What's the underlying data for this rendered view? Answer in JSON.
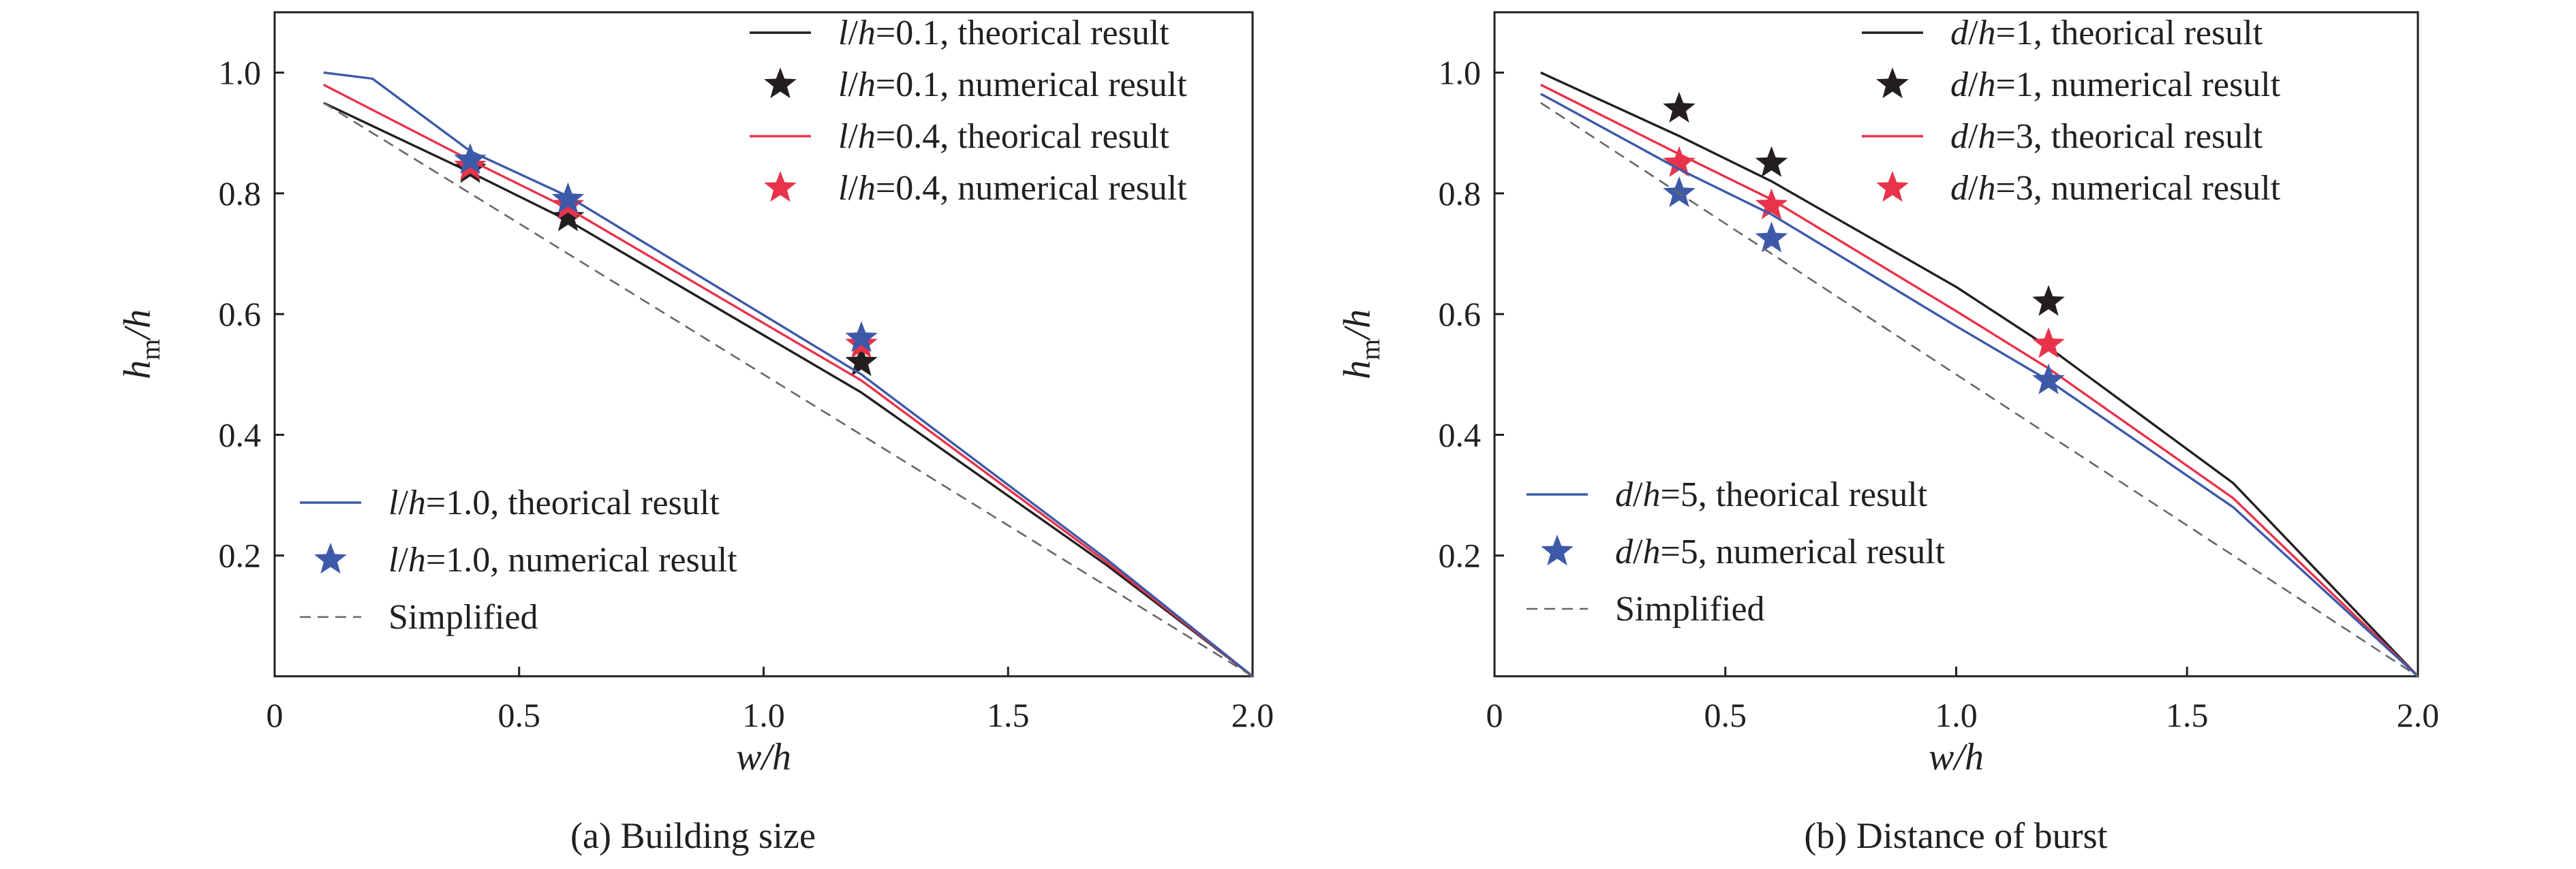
{
  "chart_data": [
    {
      "type": "line",
      "caption": "(a) Building size",
      "xlabel": "w/h",
      "ylabel": "hm/h",
      "xlim": [
        0,
        2.0
      ],
      "ylim": [
        0,
        1.1
      ],
      "x_ticks": [
        0,
        0.5,
        1.0,
        1.5,
        2.0
      ],
      "x_tick_labels": [
        "0",
        "0.5",
        "1.0",
        "1.5",
        "2.0"
      ],
      "y_ticks": [
        0.2,
        0.4,
        0.6,
        0.8,
        1.0
      ],
      "y_tick_labels": [
        "0.2",
        "0.4",
        "0.6",
        "0.8",
        "1.0"
      ],
      "legend_position": "top-right and lower-left",
      "series": [
        {
          "name": "l/h=0.1, theorical result",
          "kind": "line",
          "color": "#231f20",
          "x": [
            0.1,
            0.4,
            0.6,
            1.2,
            1.7,
            2.0
          ],
          "y": [
            0.95,
            0.835,
            0.755,
            0.47,
            0.185,
            0.0
          ]
        },
        {
          "name": "l/h=0.1, numerical result",
          "kind": "star",
          "color": "#231f20",
          "x": [
            0.4,
            0.6,
            1.2
          ],
          "y": [
            0.84,
            0.76,
            0.52
          ]
        },
        {
          "name": "l/h=0.4, theorical result",
          "kind": "line",
          "color": "#e8334a",
          "x": [
            0.1,
            0.4,
            0.6,
            1.2,
            1.7,
            2.0
          ],
          "y": [
            0.98,
            0.855,
            0.775,
            0.49,
            0.19,
            0.0
          ]
        },
        {
          "name": "l/h=0.4, numerical result",
          "kind": "star",
          "color": "#e8334a",
          "x": [
            0.4,
            0.6,
            1.2
          ],
          "y": [
            0.845,
            0.78,
            0.55
          ]
        },
        {
          "name": "l/h=1.0, theorical result",
          "kind": "line",
          "color": "#3d5aa8",
          "x": [
            0.1,
            0.2,
            0.4,
            0.6,
            1.2,
            1.7,
            2.0
          ],
          "y": [
            1.0,
            0.99,
            0.87,
            0.795,
            0.5,
            0.195,
            0.0
          ]
        },
        {
          "name": "l/h=1.0, numerical result",
          "kind": "star",
          "color": "#3d5aa8",
          "x": [
            0.4,
            0.6,
            1.2
          ],
          "y": [
            0.855,
            0.79,
            0.56
          ]
        },
        {
          "name": "Simplified",
          "kind": "dashed",
          "color": "#666666",
          "x": [
            0.1,
            2.0
          ],
          "y": [
            0.95,
            0.0
          ]
        }
      ]
    },
    {
      "type": "line",
      "caption": "(b) Distance of burst",
      "xlabel": "w/h",
      "ylabel": "hm/h",
      "xlim": [
        0,
        2.0
      ],
      "ylim": [
        0,
        1.1
      ],
      "x_ticks": [
        0,
        0.5,
        1.0,
        1.5,
        2.0
      ],
      "x_tick_labels": [
        "0",
        "0.5",
        "1.0",
        "1.5",
        "2.0"
      ],
      "y_ticks": [
        0.2,
        0.4,
        0.6,
        0.8,
        1.0
      ],
      "y_tick_labels": [
        "0.2",
        "0.4",
        "0.6",
        "0.8",
        "1.0"
      ],
      "legend_position": "top-right and lower-left",
      "series": [
        {
          "name": "d/h=1, theorical result",
          "kind": "line",
          "color": "#231f20",
          "x": [
            0.1,
            0.4,
            0.6,
            1.0,
            1.2,
            1.6,
            2.0
          ],
          "y": [
            1.0,
            0.895,
            0.82,
            0.645,
            0.545,
            0.32,
            0.0
          ]
        },
        {
          "name": "d/h=1, numerical result",
          "kind": "star",
          "color": "#231f20",
          "x": [
            0.4,
            0.6,
            1.2
          ],
          "y": [
            0.94,
            0.85,
            0.62
          ]
        },
        {
          "name": "d/h=3, theorical result",
          "kind": "line",
          "color": "#e8334a",
          "x": [
            0.1,
            0.4,
            0.6,
            1.0,
            1.2,
            1.6,
            2.0
          ],
          "y": [
            0.98,
            0.865,
            0.79,
            0.605,
            0.51,
            0.295,
            0.0
          ]
        },
        {
          "name": "d/h=3, numerical result",
          "kind": "star",
          "color": "#e8334a",
          "x": [
            0.4,
            0.6,
            1.2
          ],
          "y": [
            0.85,
            0.78,
            0.55
          ]
        },
        {
          "name": "d/h=5, theorical result",
          "kind": "line",
          "color": "#3d5aa8",
          "x": [
            0.1,
            0.4,
            0.6,
            1.0,
            1.2,
            1.6,
            2.0
          ],
          "y": [
            0.965,
            0.84,
            0.765,
            0.58,
            0.49,
            0.28,
            0.0
          ]
        },
        {
          "name": "d/h=5, numerical result",
          "kind": "star",
          "color": "#3d5aa8",
          "x": [
            0.4,
            0.6,
            1.2
          ],
          "y": [
            0.8,
            0.725,
            0.49
          ]
        },
        {
          "name": "Simplified",
          "kind": "dashed",
          "color": "#666666",
          "x": [
            0.1,
            2.0
          ],
          "y": [
            0.95,
            0.0
          ]
        }
      ]
    }
  ]
}
